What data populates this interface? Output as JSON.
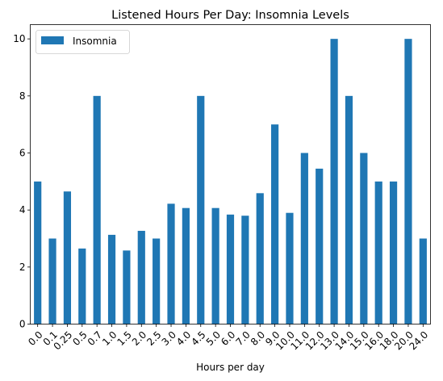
{
  "chart_data": {
    "type": "bar",
    "title": "Listened Hours Per Day: Insomnia Levels",
    "xlabel": "Hours per day",
    "ylabel": "",
    "ylim": [
      0,
      10.5
    ],
    "yticks": [
      0,
      2,
      4,
      6,
      8,
      10
    ],
    "legend": "upper-left",
    "grid": false,
    "categories": [
      "0.0",
      "0.1",
      "0.25",
      "0.5",
      "0.7",
      "1.0",
      "1.5",
      "2.0",
      "2.5",
      "3.0",
      "4.0",
      "4.5",
      "5.0",
      "6.0",
      "7.0",
      "8.0",
      "9.0",
      "10.0",
      "11.0",
      "12.0",
      "13.0",
      "14.0",
      "15.0",
      "16.0",
      "18.0",
      "20.0",
      "24.0"
    ],
    "series": [
      {
        "name": "Insomnia",
        "color": "#1f77b4",
        "values": [
          5.0,
          3.0,
          4.65,
          2.65,
          8.0,
          3.13,
          2.58,
          3.27,
          3.0,
          4.22,
          4.07,
          8.0,
          4.07,
          3.84,
          3.8,
          4.59,
          7.0,
          3.9,
          6.0,
          5.45,
          10.0,
          8.0,
          6.0,
          5.0,
          5.0,
          10.0,
          3.0
        ]
      }
    ]
  }
}
